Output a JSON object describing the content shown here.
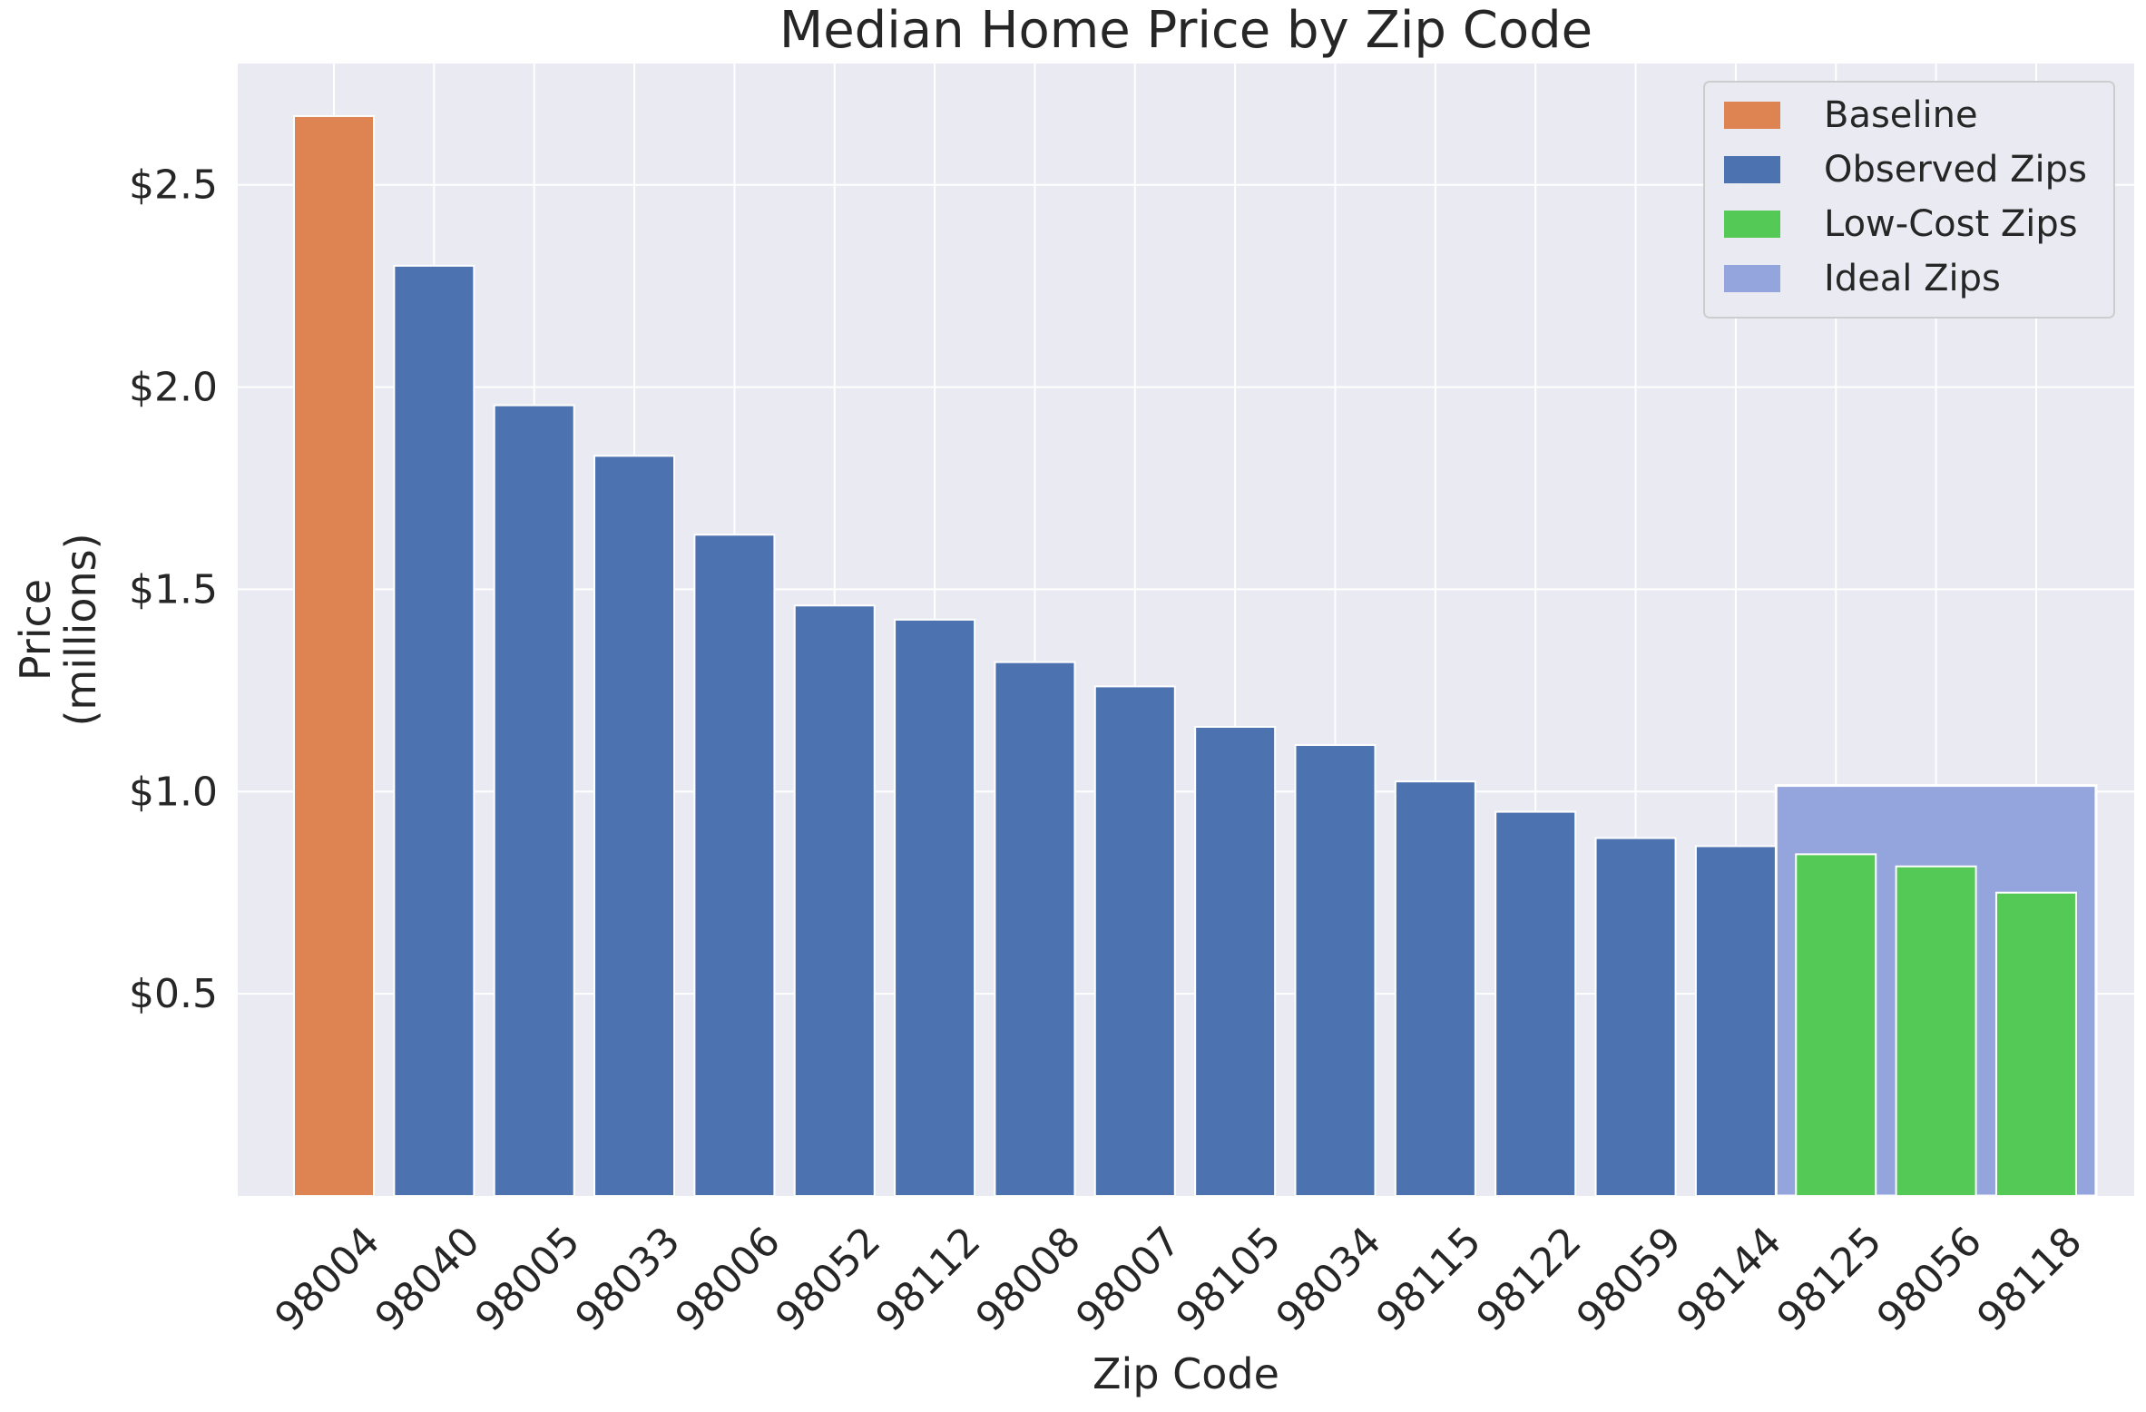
{
  "chart_data": {
    "type": "bar",
    "title": "Median Home Price by Zip Code",
    "xlabel": "Zip Code",
    "ylabel_lines": [
      "Price",
      "(millions)"
    ],
    "ylim": [
      0,
      2.8
    ],
    "yticks": [
      0.5,
      1.0,
      1.5,
      2.0,
      2.5
    ],
    "ytick_labels": [
      "$0.5",
      "$1.0",
      "$1.5",
      "$2.0",
      "$2.5"
    ],
    "grid": true,
    "legend_position": "top-right",
    "categories": [
      "98004",
      "98040",
      "98005",
      "98033",
      "98006",
      "98052",
      "98112",
      "98008",
      "98007",
      "98105",
      "98034",
      "98115",
      "98122",
      "98059",
      "98144",
      "98125",
      "98056",
      "98118"
    ],
    "values": [
      2.67,
      2.3,
      1.955,
      1.83,
      1.635,
      1.46,
      1.425,
      1.32,
      1.26,
      1.16,
      1.115,
      1.025,
      0.95,
      0.885,
      0.865,
      0.845,
      0.815,
      0.75
    ],
    "groups": [
      "Baseline",
      "Observed Zips",
      "Observed Zips",
      "Observed Zips",
      "Observed Zips",
      "Observed Zips",
      "Observed Zips",
      "Observed Zips",
      "Observed Zips",
      "Observed Zips",
      "Observed Zips",
      "Observed Zips",
      "Observed Zips",
      "Observed Zips",
      "Observed Zips",
      "Low-Cost Zips",
      "Low-Cost Zips",
      "Low-Cost Zips"
    ],
    "ideal_region": {
      "label": "Ideal Zips",
      "from_category": "98125",
      "to_category": "98118",
      "value": 1.015
    },
    "legend": [
      {
        "label": "Baseline",
        "color": "#dd8452"
      },
      {
        "label": "Observed Zips",
        "color": "#4c72b0"
      },
      {
        "label": "Low-Cost Zips",
        "color": "#55c955"
      },
      {
        "label": "Ideal Zips",
        "color": "#94a5de"
      }
    ],
    "colors": {
      "Baseline": "#dd8452",
      "Observed Zips": "#4c72b0",
      "Low-Cost Zips": "#55c955",
      "Ideal Zips": "#94a5de",
      "plot_background": "#eaeaf2",
      "grid": "#ffffff"
    }
  }
}
